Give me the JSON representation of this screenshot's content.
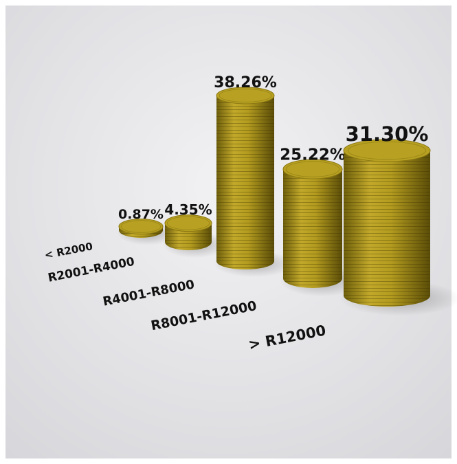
{
  "chart_data": {
    "type": "bar",
    "categories": [
      "< R2000",
      "R2001-R4000",
      "R4001-R8000",
      "R8001-R12000",
      "> R12000"
    ],
    "values": [
      0.87,
      4.35,
      38.26,
      25.22,
      31.3
    ],
    "value_labels": [
      "0.87%",
      "4.35%",
      "38.26%",
      "25.22%",
      "31.30%"
    ],
    "color": "#b8a122"
  }
}
